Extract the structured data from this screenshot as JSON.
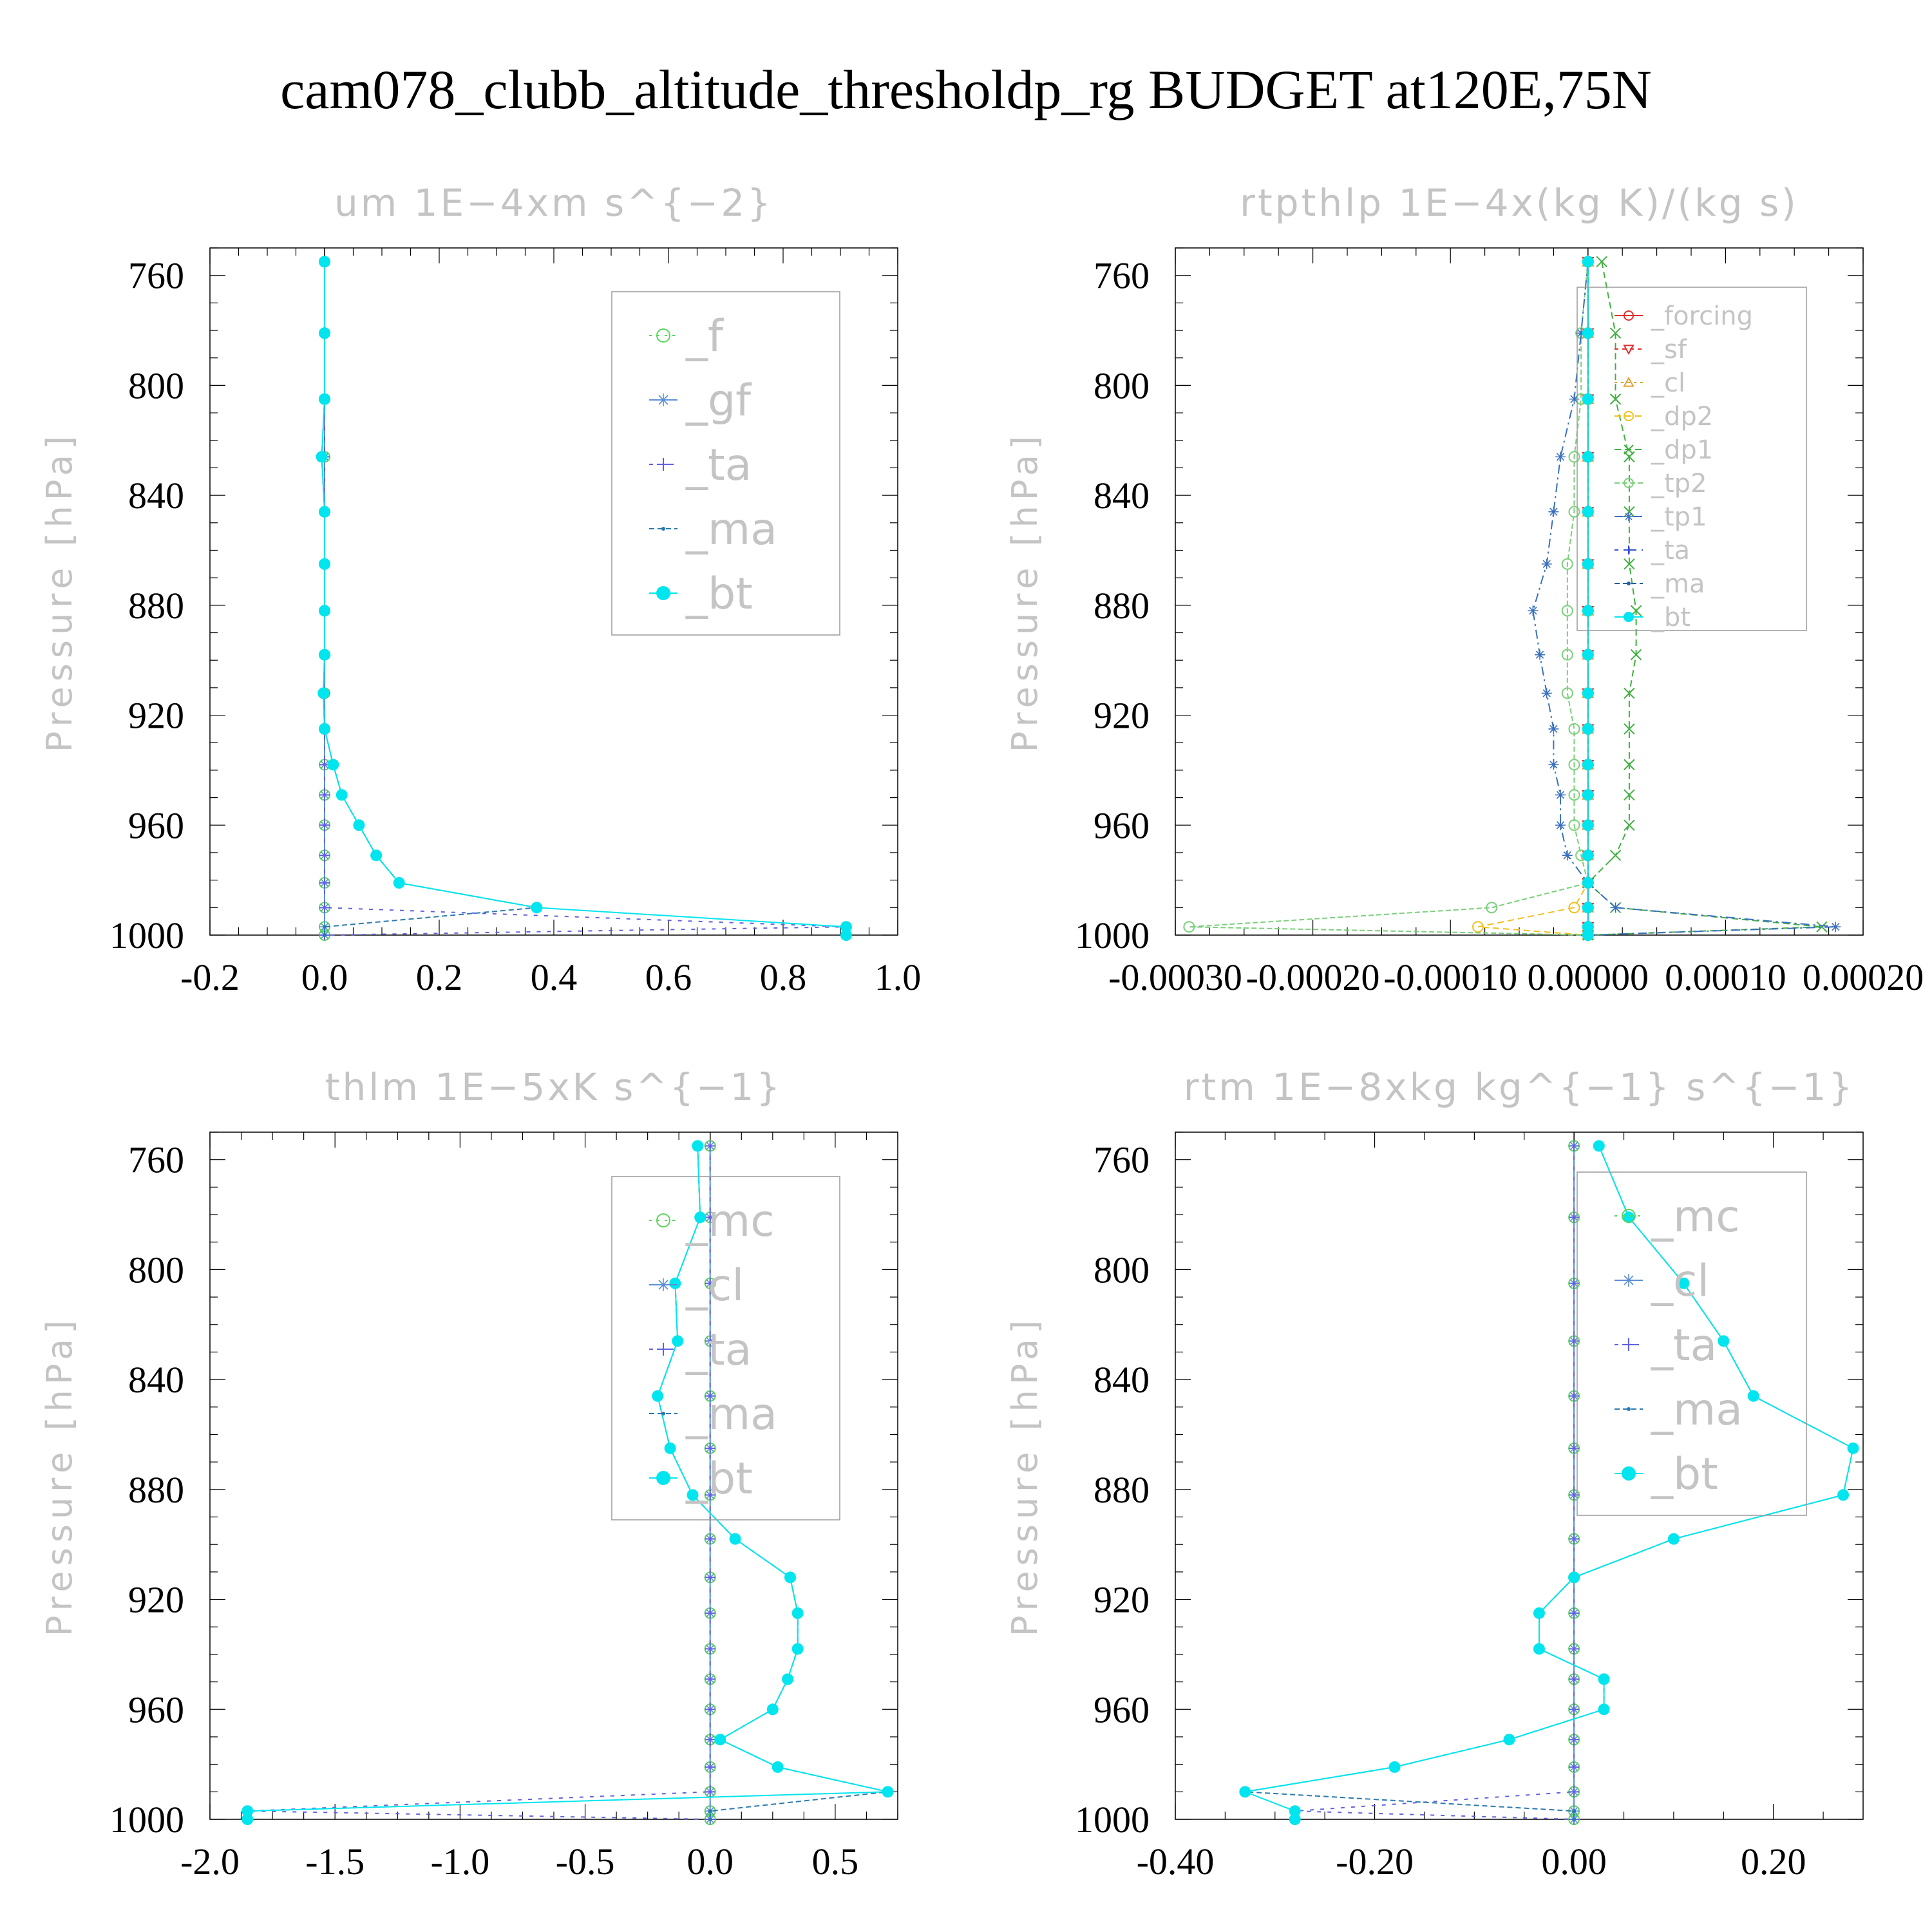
{
  "suptitle": "cam078_clubb_altitude_thresholdp_rg  BUDGET at120E,75N",
  "chart_data": [
    {
      "type": "line",
      "title": "um   1E−4xm s^{−2}",
      "ylabel": "Pressure [hPa]",
      "xlabel": "",
      "xlim": [
        -0.2,
        1.0
      ],
      "ylim": [
        1000,
        750
      ],
      "xticks": [
        "-0.2",
        "0.0",
        "0.2",
        "0.4",
        "0.6",
        "0.8",
        "1.0"
      ],
      "xtick_values": [
        -0.2,
        0.0,
        0.2,
        0.4,
        0.6,
        0.8,
        1.0
      ],
      "yticks": [
        "760",
        "800",
        "840",
        "880",
        "920",
        "960",
        "1000"
      ],
      "ytick_values": [
        760,
        800,
        840,
        880,
        920,
        960,
        1000
      ],
      "grid": false,
      "legend_position": "top-right",
      "pressure": [
        755,
        781,
        805,
        826,
        846,
        865,
        882,
        898,
        912,
        925,
        938,
        949,
        960,
        971,
        981,
        990,
        997,
        1000
      ],
      "series": [
        {
          "name": "_f",
          "color": "#5ad65a",
          "marker": "circle",
          "dash": "4 8",
          "values": [
            0,
            0,
            0,
            0,
            0,
            0,
            0,
            0,
            0,
            0,
            0,
            0,
            0,
            0,
            0,
            0,
            0,
            0
          ]
        },
        {
          "name": "_gf",
          "color": "#5a8fd6",
          "marker": "star",
          "dash": "none",
          "values": [
            0,
            0,
            0,
            0,
            0,
            0,
            0,
            0,
            0,
            0,
            0,
            0,
            0,
            0,
            0,
            0,
            0,
            0
          ]
        },
        {
          "name": "_ta",
          "color": "#6060e0",
          "marker": "plus",
          "dash": "6 10",
          "values": [
            0,
            0,
            0,
            0,
            0,
            0,
            0,
            0,
            0,
            0,
            0,
            0,
            0,
            0,
            0,
            0,
            0.91,
            0
          ]
        },
        {
          "name": "_ma",
          "color": "#2a7ab0",
          "marker": "dot",
          "dash": "8 5",
          "values": [
            0,
            0,
            0,
            -0.005,
            0,
            0,
            0,
            0,
            -0.002,
            0,
            0.015,
            0.03,
            0.06,
            0.09,
            0.13,
            0.37,
            0,
            0
          ]
        },
        {
          "name": "_bt",
          "color": "#00e5ee",
          "marker": "fcircle",
          "dash": "none",
          "values": [
            0,
            0,
            0,
            -0.005,
            0,
            0,
            0,
            0,
            -0.002,
            0,
            0.015,
            0.03,
            0.06,
            0.09,
            0.13,
            0.37,
            0.91,
            0.91
          ]
        }
      ]
    },
    {
      "type": "line",
      "title": "rtpthlp   1E−4x(kg K)/(kg s)",
      "ylabel": "Pressure [hPa]",
      "xlabel": "",
      "xlim": [
        -0.0003,
        0.0002
      ],
      "ylim": [
        1000,
        750
      ],
      "xticks": [
        "-0.00030",
        "-0.00020",
        "-0.00010",
        "0.00000",
        "0.00010",
        "0.00020"
      ],
      "xtick_values": [
        -0.0003,
        -0.0002,
        -0.0001,
        0.0,
        0.0001,
        0.0002
      ],
      "yticks": [
        "760",
        "800",
        "840",
        "880",
        "920",
        "960",
        "1000"
      ],
      "ytick_values": [
        760,
        800,
        840,
        880,
        920,
        960,
        1000
      ],
      "grid": false,
      "legend_position": "top-right",
      "pressure": [
        755,
        781,
        805,
        826,
        846,
        865,
        882,
        898,
        912,
        925,
        938,
        949,
        960,
        971,
        981,
        990,
        997,
        1000
      ],
      "series": [
        {
          "name": "_forcing",
          "color": "#e03030",
          "marker": "circle",
          "dash": "none",
          "values": [
            0,
            0,
            0,
            0,
            0,
            0,
            0,
            0,
            0,
            0,
            0,
            0,
            0,
            0,
            0,
            0,
            0,
            0
          ]
        },
        {
          "name": "_sf",
          "color": "#e03030",
          "marker": "tri-down",
          "dash": "6 6",
          "values": [
            0,
            0,
            0,
            0,
            0,
            0,
            0,
            0,
            0,
            0,
            0,
            0,
            0,
            0,
            0,
            0,
            0,
            0
          ]
        },
        {
          "name": "_cl",
          "color": "#e0a030",
          "marker": "tri-up",
          "dash": "4 6",
          "values": [
            0,
            0,
            0,
            0,
            0,
            0,
            0,
            0,
            0,
            0,
            0,
            0,
            0,
            0,
            0,
            0,
            0,
            0
          ]
        },
        {
          "name": "_dp2",
          "color": "#f0c020",
          "marker": "circle",
          "dash": "10 6",
          "values": [
            0,
            0,
            0,
            0,
            0,
            0,
            0,
            0,
            0,
            0,
            0,
            0,
            0,
            0,
            0,
            -1e-05,
            -8e-05,
            0
          ]
        },
        {
          "name": "_dp1",
          "color": "#40b040",
          "marker": "x",
          "dash": "10 6",
          "values": [
            1e-05,
            2e-05,
            2e-05,
            3e-05,
            3e-05,
            3e-05,
            3.5e-05,
            3.5e-05,
            3e-05,
            3e-05,
            3e-05,
            3e-05,
            3e-05,
            2e-05,
            0,
            2e-05,
            0.00017,
            0
          ]
        },
        {
          "name": "_tp2",
          "color": "#7ad07a",
          "marker": "circle",
          "dash": "8 4",
          "values": [
            0,
            -5e-06,
            -5e-06,
            -1e-05,
            -1e-05,
            -1.5e-05,
            -1.5e-05,
            -1.5e-05,
            -1.5e-05,
            -1e-05,
            -1e-05,
            -1e-05,
            -1e-05,
            -5e-06,
            0,
            -7e-05,
            -0.00029,
            0
          ]
        },
        {
          "name": "_tp1",
          "color": "#3a70c0",
          "marker": "star",
          "dash": "14 6 3 6",
          "values": [
            0,
            -5e-06,
            -1e-05,
            -2e-05,
            -2.5e-05,
            -3e-05,
            -4e-05,
            -3.5e-05,
            -3e-05,
            -2.5e-05,
            -2.5e-05,
            -2e-05,
            -2e-05,
            -1.5e-05,
            0,
            2e-05,
            0.00018,
            0
          ]
        },
        {
          "name": "_ta",
          "color": "#3050d0",
          "marker": "plus",
          "dash": "6 8",
          "values": [
            0,
            0,
            0,
            0,
            0,
            0,
            0,
            0,
            0,
            0,
            0,
            0,
            0,
            0,
            0,
            0,
            0,
            0
          ]
        },
        {
          "name": "_ma",
          "color": "#2060a0",
          "marker": "dot",
          "dash": "8 5",
          "values": [
            0,
            0,
            0,
            0,
            0,
            0,
            0,
            0,
            0,
            0,
            0,
            0,
            0,
            0,
            0,
            0,
            0,
            0
          ]
        },
        {
          "name": "_bt",
          "color": "#00e5ee",
          "marker": "fcircle",
          "dash": "none",
          "values": [
            0,
            0,
            0,
            0,
            0,
            0,
            0,
            0,
            0,
            0,
            0,
            0,
            0,
            0,
            0,
            0,
            0,
            0
          ]
        }
      ]
    },
    {
      "type": "line",
      "title": "thlm   1E−5xK s^{−1}",
      "ylabel": "Pressure [hPa]",
      "xlabel": "",
      "xlim": [
        -2.0,
        0.75
      ],
      "ylim": [
        1000,
        750
      ],
      "xticks": [
        "-2.0",
        "-1.5",
        "-1.0",
        "-0.5",
        "0.0",
        "0.5"
      ],
      "xtick_values": [
        -2.0,
        -1.5,
        -1.0,
        -0.5,
        0.0,
        0.5
      ],
      "yticks": [
        "760",
        "800",
        "840",
        "880",
        "920",
        "960",
        "1000"
      ],
      "ytick_values": [
        760,
        800,
        840,
        880,
        920,
        960,
        1000
      ],
      "grid": false,
      "legend_position": "top-right",
      "pressure": [
        755,
        781,
        805,
        826,
        846,
        865,
        882,
        898,
        912,
        925,
        938,
        949,
        960,
        971,
        981,
        990,
        997,
        1000
      ],
      "series": [
        {
          "name": "_mc",
          "color": "#5ad65a",
          "marker": "circle",
          "dash": "4 8",
          "values": [
            0,
            0,
            0,
            0,
            0,
            0,
            0,
            0,
            0,
            0,
            0,
            0,
            0,
            0,
            0,
            0,
            0,
            0
          ]
        },
        {
          "name": "_cl",
          "color": "#5a8fd6",
          "marker": "star",
          "dash": "none",
          "values": [
            0,
            0,
            0,
            0,
            0,
            0,
            0,
            0,
            0,
            0,
            0,
            0,
            0,
            0,
            0,
            0,
            0,
            0
          ]
        },
        {
          "name": "_ta",
          "color": "#6060e0",
          "marker": "plus",
          "dash": "6 10",
          "values": [
            0,
            0,
            0,
            0,
            0,
            0,
            0,
            0,
            0,
            0,
            0,
            0,
            0,
            0,
            0,
            0,
            -1.85,
            0
          ]
        },
        {
          "name": "_ma",
          "color": "#2a7ab0",
          "marker": "dot",
          "dash": "8 5",
          "values": [
            -0.05,
            -0.04,
            -0.14,
            -0.13,
            -0.21,
            -0.16,
            -0.07,
            0.1,
            0.32,
            0.35,
            0.35,
            0.31,
            0.25,
            0.04,
            0.27,
            0.71,
            0,
            0
          ]
        },
        {
          "name": "_bt",
          "color": "#00e5ee",
          "marker": "fcircle",
          "dash": "none",
          "values": [
            -0.05,
            -0.04,
            -0.14,
            -0.13,
            -0.21,
            -0.16,
            -0.07,
            0.1,
            0.32,
            0.35,
            0.35,
            0.31,
            0.25,
            0.04,
            0.27,
            0.71,
            -1.85,
            -1.85
          ]
        }
      ]
    },
    {
      "type": "line",
      "title": "rtm   1E−8xkg kg^{−1} s^{−1}",
      "ylabel": "Pressure [hPa]",
      "xlabel": "",
      "xlim": [
        -0.4,
        0.29
      ],
      "ylim": [
        1000,
        750
      ],
      "xticks": [
        "-0.40",
        "-0.20",
        "0.00",
        "0.20"
      ],
      "xtick_values": [
        -0.4,
        -0.2,
        0.0,
        0.2
      ],
      "yticks": [
        "760",
        "800",
        "840",
        "880",
        "920",
        "960",
        "1000"
      ],
      "ytick_values": [
        760,
        800,
        840,
        880,
        920,
        960,
        1000
      ],
      "grid": false,
      "legend_position": "top-right",
      "pressure": [
        755,
        781,
        805,
        826,
        846,
        865,
        882,
        898,
        912,
        925,
        938,
        949,
        960,
        971,
        981,
        990,
        997,
        1000
      ],
      "series": [
        {
          "name": "_mc",
          "color": "#5ad65a",
          "marker": "circle",
          "dash": "4 8",
          "values": [
            0,
            0,
            0,
            0,
            0,
            0,
            0,
            0,
            0,
            0,
            0,
            0,
            0,
            0,
            0,
            0,
            0,
            0
          ]
        },
        {
          "name": "_cl",
          "color": "#5a8fd6",
          "marker": "star",
          "dash": "none",
          "values": [
            0,
            0,
            0,
            0,
            0,
            0,
            0,
            0,
            0,
            0,
            0,
            0,
            0,
            0,
            0,
            0,
            0,
            0
          ]
        },
        {
          "name": "_ta",
          "color": "#6060e0",
          "marker": "plus",
          "dash": "6 10",
          "values": [
            0,
            0,
            0,
            0,
            0,
            0,
            0,
            0,
            0,
            0,
            0,
            0,
            0,
            0,
            0,
            0,
            -0.28,
            0
          ]
        },
        {
          "name": "_ma",
          "color": "#2a7ab0",
          "marker": "dot",
          "dash": "8 5",
          "values": [
            0.025,
            0.055,
            0.11,
            0.15,
            0.18,
            0.28,
            0.27,
            0.1,
            0,
            -0.035,
            -0.035,
            0.03,
            0.03,
            -0.065,
            -0.18,
            -0.33,
            0,
            0
          ]
        },
        {
          "name": "_bt",
          "color": "#00e5ee",
          "marker": "fcircle",
          "dash": "none",
          "values": [
            0.025,
            0.055,
            0.11,
            0.15,
            0.18,
            0.28,
            0.27,
            0.1,
            0,
            -0.035,
            -0.035,
            0.03,
            0.03,
            -0.065,
            -0.18,
            -0.33,
            -0.28,
            -0.28
          ]
        }
      ]
    }
  ]
}
